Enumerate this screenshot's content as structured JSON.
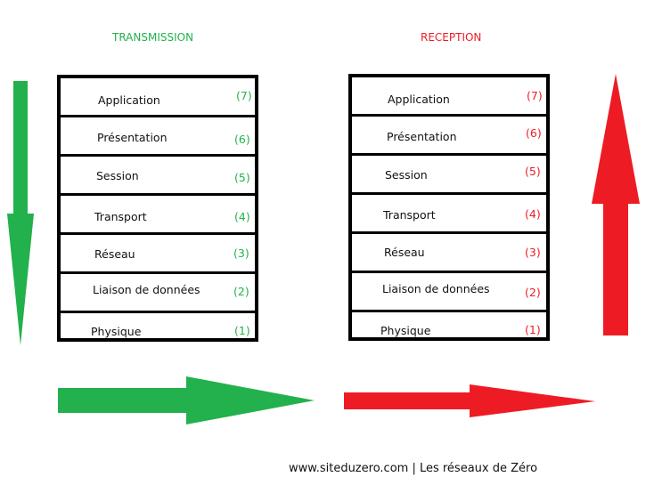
{
  "headings": {
    "transmission": "TRANSMISSION",
    "reception": "RECEPTION"
  },
  "colors": {
    "green": "#22b14c",
    "red": "#ed1c24",
    "border": "#000000"
  },
  "transmission_layers": [
    {
      "name": "Application",
      "num": "(7)"
    },
    {
      "name": "Présentation",
      "num": "(6)"
    },
    {
      "name": "Session",
      "num": "(5)"
    },
    {
      "name": "Transport",
      "num": "(4)"
    },
    {
      "name": "Réseau",
      "num": "(3)"
    },
    {
      "name": "Liaison de données",
      "num": "(2)"
    },
    {
      "name": "Physique",
      "num": "(1)"
    }
  ],
  "reception_layers": [
    {
      "name": "Application",
      "num": "(7)"
    },
    {
      "name": "Présentation",
      "num": "(6)"
    },
    {
      "name": "Session",
      "num": "(5)"
    },
    {
      "name": "Transport",
      "num": "(4)"
    },
    {
      "name": "Réseau",
      "num": "(3)"
    },
    {
      "name": "Liaison de données",
      "num": "(2)"
    },
    {
      "name": "Physique",
      "num": "(1)"
    }
  ],
  "footer": "www.siteduzero.com | Les réseaux de Zéro"
}
